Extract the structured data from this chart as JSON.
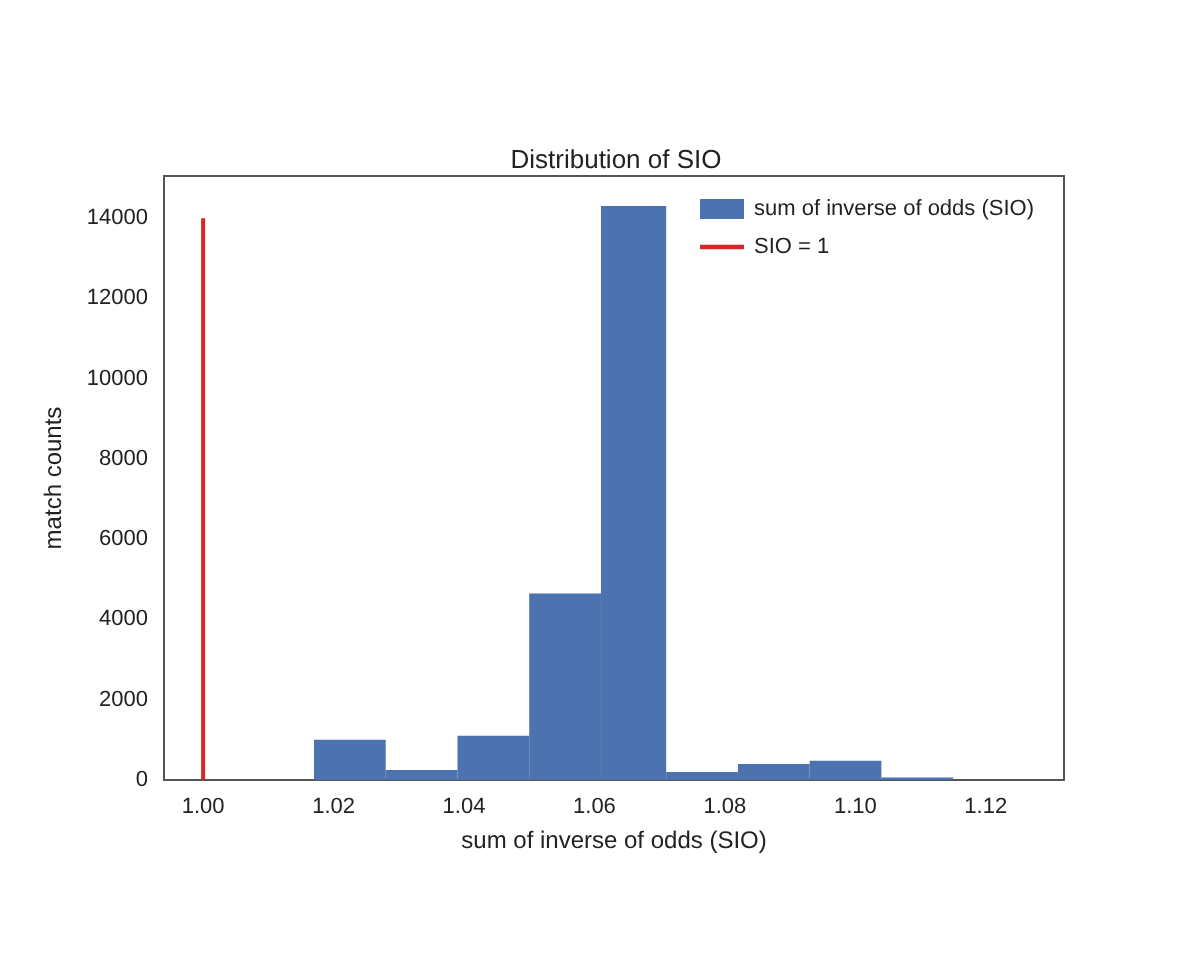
{
  "chart_data": {
    "type": "histogram",
    "title": "Distribution of SIO",
    "xlabel": "sum of inverse of odds (SIO)",
    "ylabel": "match counts",
    "bins": [
      1.017,
      1.028,
      1.039,
      1.05,
      1.061,
      1.071,
      1.082,
      1.093,
      1.104,
      1.115
    ],
    "series": [
      {
        "name": "sum of inverse of odds (SIO)",
        "color": "#4c72b0",
        "values": [
          1000,
          250,
          1100,
          4650,
          14300,
          200,
          400,
          480,
          60
        ]
      },
      {
        "name": "SIO = 1",
        "type": "line",
        "color": "#d62728",
        "x": [
          1,
          1
        ],
        "values": [
          0,
          14000
        ]
      }
    ],
    "xlim": [
      0.994,
      1.132
    ],
    "ylim": [
      0,
      15050
    ],
    "xticks": [
      {
        "value": 1,
        "label": "1.00"
      },
      {
        "value": 1.02,
        "label": "1.02"
      },
      {
        "value": 1.04,
        "label": "1.04"
      },
      {
        "value": 1.06,
        "label": "1.06"
      },
      {
        "value": 1.08,
        "label": "1.08"
      },
      {
        "value": 1.1,
        "label": "1.10"
      },
      {
        "value": 1.12,
        "label": "1.12"
      }
    ],
    "yticks": [
      0,
      2000,
      4000,
      6000,
      8000,
      10000,
      12000,
      14000
    ],
    "grid": false,
    "legend": "top right"
  }
}
